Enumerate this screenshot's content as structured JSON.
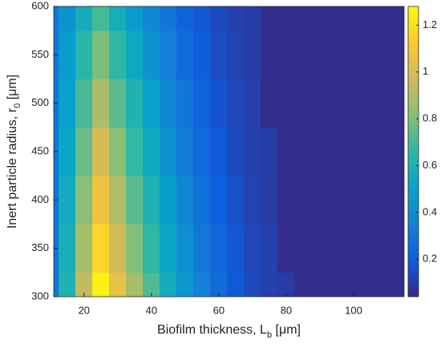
{
  "chart_data": {
    "type": "contourf",
    "xlabel": [
      "Biofilm thickness, L",
      "b",
      " [μm]"
    ],
    "ylabel": [
      "Inert particle radius, r",
      "0",
      " [μm]"
    ],
    "x": [
      10,
      15,
      20,
      25,
      30,
      35,
      40,
      45,
      50,
      55,
      60,
      65,
      70,
      75,
      80,
      85,
      90,
      95,
      100,
      105,
      110,
      115
    ],
    "y": [
      300,
      350,
      400,
      450,
      500,
      550,
      600
    ],
    "z": [
      [
        0.3,
        0.61,
        0.94,
        1.25,
        1.05,
        0.88,
        0.72,
        0.57,
        0.45,
        0.35,
        0.26,
        0.19,
        0.14,
        0.11,
        0.1,
        0.05,
        0.05,
        0.05,
        0.05,
        0.05,
        0.05,
        0.05
      ],
      [
        0.3,
        0.58,
        0.88,
        1.16,
        0.97,
        0.81,
        0.66,
        0.53,
        0.41,
        0.31,
        0.24,
        0.18,
        0.13,
        0.11,
        0.05,
        0.05,
        0.05,
        0.05,
        0.05,
        0.05,
        0.05,
        0.05
      ],
      [
        0.3,
        0.55,
        0.82,
        1.07,
        0.9,
        0.74,
        0.6,
        0.48,
        0.37,
        0.28,
        0.21,
        0.16,
        0.12,
        0.1,
        0.05,
        0.05,
        0.05,
        0.05,
        0.05,
        0.05,
        0.05,
        0.05
      ],
      [
        0.3,
        0.52,
        0.76,
        0.98,
        0.82,
        0.67,
        0.54,
        0.43,
        0.33,
        0.25,
        0.19,
        0.14,
        0.11,
        0.1,
        0.05,
        0.05,
        0.05,
        0.05,
        0.05,
        0.05,
        0.05,
        0.05
      ],
      [
        0.3,
        0.49,
        0.7,
        0.89,
        0.74,
        0.61,
        0.49,
        0.38,
        0.3,
        0.23,
        0.17,
        0.13,
        0.11,
        0.05,
        0.05,
        0.05,
        0.05,
        0.05,
        0.05,
        0.05,
        0.05,
        0.05
      ],
      [
        0.3,
        0.47,
        0.64,
        0.8,
        0.66,
        0.54,
        0.43,
        0.34,
        0.26,
        0.2,
        0.15,
        0.12,
        0.1,
        0.05,
        0.05,
        0.05,
        0.05,
        0.05,
        0.05,
        0.05,
        0.05,
        0.05
      ],
      [
        0.3,
        0.43,
        0.57,
        0.7,
        0.58,
        0.47,
        0.38,
        0.3,
        0.23,
        0.18,
        0.14,
        0.11,
        0.1,
        0.05,
        0.05,
        0.05,
        0.05,
        0.05,
        0.05,
        0.05,
        0.05,
        0.05
      ]
    ],
    "xlim": [
      11,
      115
    ],
    "xticks": [
      20,
      40,
      60,
      80,
      100
    ],
    "ylim": [
      300,
      600
    ],
    "yticks": [
      300,
      350,
      400,
      450,
      500,
      550,
      600
    ],
    "clim": [
      0.04,
      1.28
    ],
    "cticks": [
      0.2,
      0.4,
      0.6,
      0.8,
      1,
      1.2
    ],
    "colormap": "parula"
  }
}
